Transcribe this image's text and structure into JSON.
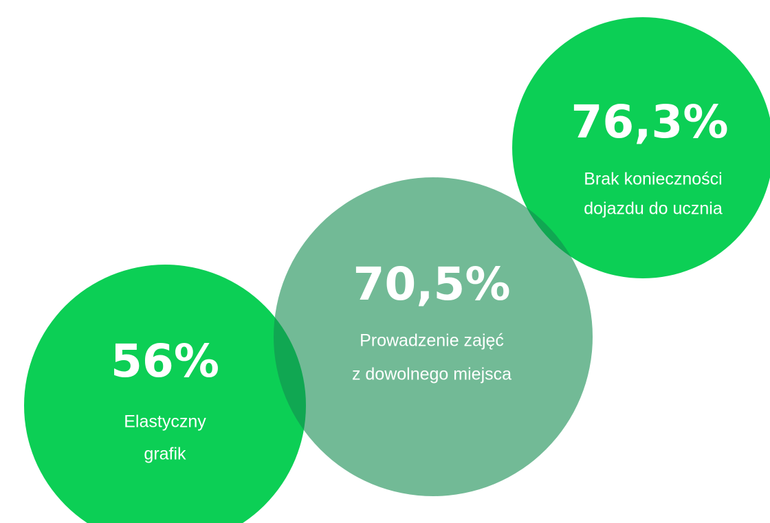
{
  "items": [
    {
      "value": "56%",
      "label": [
        "Elastyczny",
        "grafik"
      ]
    },
    {
      "value": "70,5%",
      "label": [
        "Prowadzenie zajęć",
        "z dowolnego miejsca"
      ]
    },
    {
      "value": "76,3%",
      "label": [
        "Brak konieczności",
        "dojazdu do ucznia"
      ]
    }
  ]
}
